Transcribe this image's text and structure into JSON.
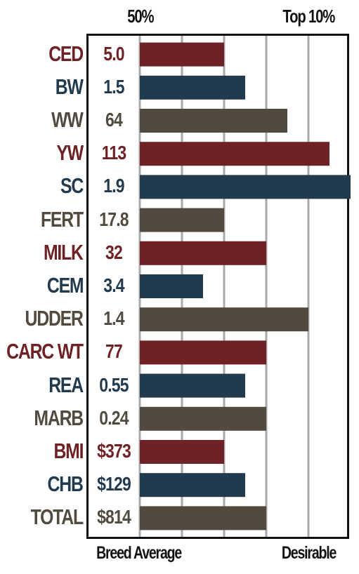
{
  "header": {
    "left": "50%",
    "right": "Top 10%"
  },
  "footer": {
    "left": "Breed Average",
    "right": "Desirable"
  },
  "colors": {
    "red": "#6e2226",
    "blue": "#213a4d",
    "gray": "#524a3f",
    "grid": "#a9a9ab"
  },
  "chart_data": {
    "type": "bar",
    "orientation": "horizontal",
    "scale": [
      "Breed Average",
      "Desirable"
    ],
    "rows": [
      {
        "trait": "CED",
        "value": "5.0",
        "level": 2,
        "color": "red"
      },
      {
        "trait": "BW",
        "value": "1.5",
        "level": 2.5,
        "color": "blue"
      },
      {
        "trait": "WW",
        "value": "64",
        "level": 3.5,
        "color": "gray"
      },
      {
        "trait": "YW",
        "value": "113",
        "level": 4.5,
        "color": "red"
      },
      {
        "trait": "SC",
        "value": "1.9",
        "level": 5,
        "color": "blue"
      },
      {
        "trait": "FERT",
        "value": "17.8",
        "level": 2,
        "color": "gray"
      },
      {
        "trait": "MILK",
        "value": "32",
        "level": 3,
        "color": "red"
      },
      {
        "trait": "CEM",
        "value": "3.4",
        "level": 1.5,
        "color": "blue"
      },
      {
        "trait": "UDDER",
        "value": "1.4",
        "level": 4,
        "color": "gray"
      },
      {
        "trait": "CARC WT",
        "value": "77",
        "level": 3,
        "color": "red"
      },
      {
        "trait": "REA",
        "value": "0.55",
        "level": 2.5,
        "color": "blue"
      },
      {
        "trait": "MARB",
        "value": "0.24",
        "level": 3,
        "color": "gray"
      },
      {
        "trait": "BMI",
        "value": "$373",
        "level": 2,
        "color": "red"
      },
      {
        "trait": "CHB",
        "value": "$129",
        "level": 2.5,
        "color": "blue"
      },
      {
        "trait": "TOTAL",
        "value": "$814",
        "level": 3,
        "color": "gray"
      }
    ]
  }
}
